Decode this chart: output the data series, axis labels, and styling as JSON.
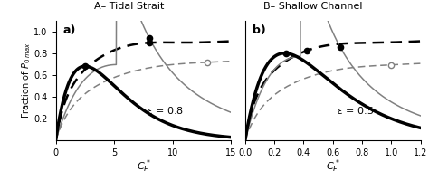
{
  "title_a": "A– Tidal Strait",
  "title_b": "B– Shallow Channel",
  "xlabel_a": "$C_F^*$",
  "xlabel_b": "$C_F^*$",
  "ylabel": "Fraction of $P_{0\\ max}$",
  "label_a": "a)",
  "label_b": "b)",
  "epsilon_a": "$\\varepsilon$ = 0.8",
  "epsilon_b": "$\\varepsilon$ = 0.5",
  "xlim_a": [
    0,
    15
  ],
  "xlim_b": [
    0,
    1.2
  ],
  "ylim": [
    0,
    1.1
  ],
  "yticks": [
    0.2,
    0.4,
    0.6,
    0.8,
    1.0
  ],
  "xticks_a": [
    0,
    5,
    10,
    15
  ],
  "xticks_b": [
    0,
    0.2,
    0.4,
    0.6,
    0.8,
    1.0,
    1.2
  ]
}
